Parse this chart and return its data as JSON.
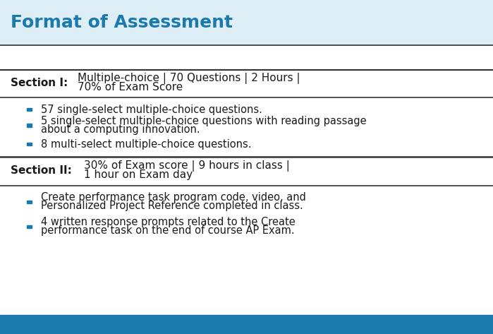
{
  "title": "Format of Assessment",
  "title_color": "#1a7aad",
  "title_fontsize": 18,
  "background_color": "#ffffff",
  "title_bg_color": "#deeef7",
  "bottom_bar_color": "#1a7aad",
  "line_color": "#333333",
  "bullet_color": "#1a7aad",
  "section_label_color": "#1a1a1a",
  "section_text_color": "#1a1a1a",
  "bullet_text_color": "#1a1a1a",
  "section1_label": "Section I:",
  "section1_line1": "Multiple-choice | 70 Questions | 2 Hours |",
  "section1_line2": "70% of Exam Score",
  "section1_bullets": [
    [
      "57 single-select multiple-choice questions."
    ],
    [
      "5 single-select multiple-choice questions with reading passage",
      "about a computing innovation."
    ],
    [
      "8 multi-select multiple-choice questions."
    ]
  ],
  "section2_label": "Section II:",
  "section2_line1": "30% of Exam score | 9 hours in class |",
  "section2_line2": "1 hour on Exam day",
  "section2_bullets": [
    [
      "Create performance task program code, video, and",
      "Personalized Project Reference completed in class."
    ],
    [
      "4 written response prompts related to the Create",
      "performance task on the end of course AP Exam."
    ]
  ]
}
